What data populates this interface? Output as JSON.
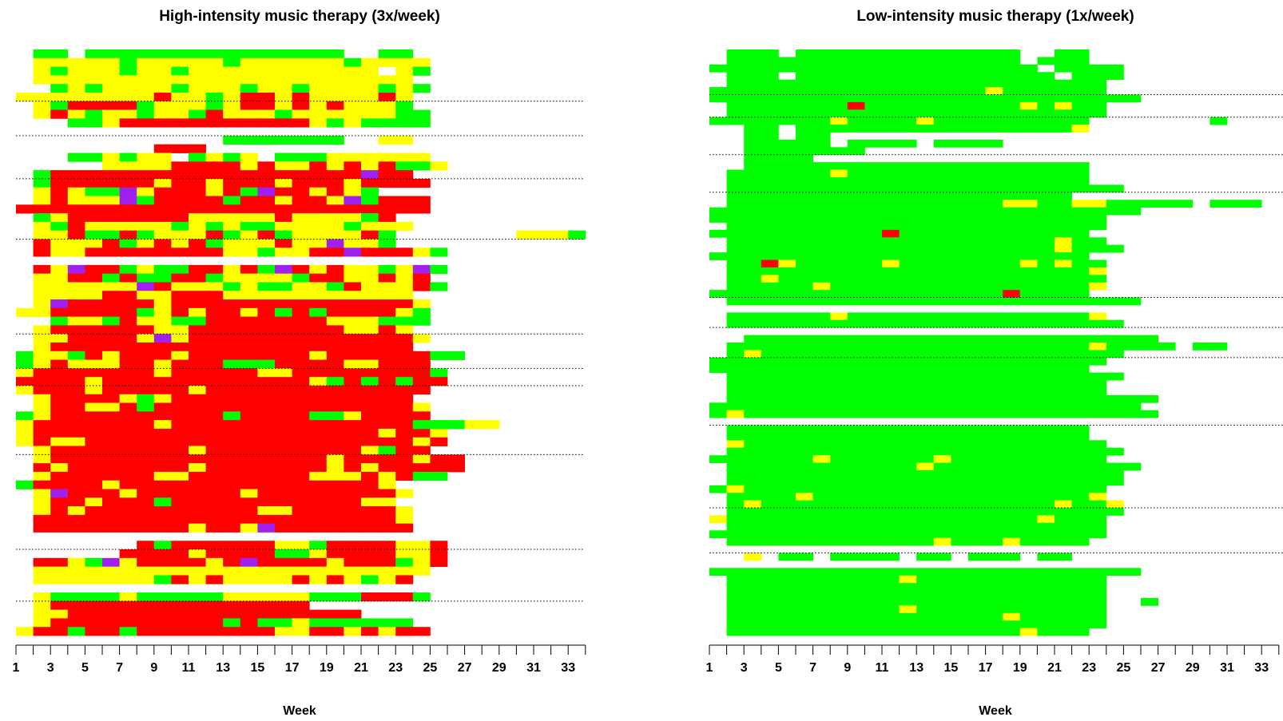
{
  "chart_data": [
    {
      "type": "heatmap",
      "title": "High-intensity music therapy (3x/week)",
      "xlabel": "Week",
      "ylabel": "",
      "xlim": [
        1,
        34
      ],
      "xticks": [
        1,
        3,
        5,
        7,
        9,
        11,
        13,
        15,
        17,
        19,
        21,
        23,
        25,
        27,
        29,
        31,
        33
      ],
      "color_map": {
        "G": "#00ff00",
        "Y": "#ffff00",
        "R": "#ff0000",
        "P": "#a020f0"
      },
      "rows": [
        "-GG.GGGGGGGGGGGGGGG..GG",
        "-YYYYYGYYYYYGYYYYYYGYYYY",
        "-YGYYYGYYGYYYYYYYYYYY.YG",
        "-YYYYYYYYYYYYYYYYYYYYYY",
        "-.GYGYYYYGYYYGYYGYYYYGYG",
        "YYYYYYYYRYYGYRRYRYYYYRY",
        "-YGRRRRGYYYGYRRYRYRYYYG",
        "-YRYGYYGYYGRYYYGYYYYYYGG",
        "-.-GGYRRRRRRRRRRRYGYGGGG",
        "",
        "-.-.........GGGGGGG..YY",
        "-.-.....RRR",
        "-.-GGYGYY.GYGY.GGGYYYYYY",
        "-.-.-YYYYRRRRYRYYRYRYRGGY",
        "-GRRRRRRRRRRRRRRRRRRPRR",
        "-GRRRRRRYRRYRRRYRRRYRRRR",
        "-YRYGGPYRRRYRGPRRYRYG",
        "-YRYYYPGRRRRGRRYRRYPGRRR",
        "RRRRRRRRRRRRRRRRRRRRRRRR",
        "-GYRRRRRRRYYYYYRYYYYGR",
        "-YGRYYYYYGYGYGGYYYYGYYY",
        "-YYRGGRGYYYRGYRGYYYYRG",
        "-RYYYRGYRYRGYYYRYYPYYG",
        "-RYYRRRRRRRRYYGYYRRPRRRYG",
        "",
        "-RYPRRGYGGRRYRGPRYRYYGYPG",
        "-YYRRGRGGRRGYYYYGRRYYRYR",
        "-YYYYYYPRYYYGYGGYYGRYYYRG",
        "-YYYYRRYYRRRYYYYYYYYYYY",
        "-YPRRRRRYRRRRRRRRRRRRRRY",
        "YYRRRRRGYRYRRYRGRGRRRRYG",
        "-.GYYGRYYGGRRRRRRRYYYGGG",
        "-YRRRRRRYYRRRRRRRRRYYRY",
        "-YYRRRRYPYRRRRRRRRRRRRRY",
        "-YRRRRRRRRRRRRRRRRRRRRR",
        "GYYGRYRRRYRRRRRRRYRRRRRRGG",
        "GYRYYYRRYRRRGGGRRRRYYRRR",
        "YRRRRRRRYRRRRRYYRRRRRRRRG",
        "RRRRYRRRRRRRRRRRRYGRGRGRR",
        "YRRRYRRRRRYRRRRRRRRRRRRR",
        "-YRRRRYGYRRRRRRRRRRRRRR",
        "-YRRYYRGRRRRRRRRRRRRRRRY",
        "GYRRRRRRRRRRGRRRRGGYRRRR",
        "YRRRRRRRYRRRRRRRRRRRRRRRY",
        "YRRRRRRRRRRRRRRRRRRRRYRRY",
        "YRYYRRRRRRRRRRRRRRRRRRRYR",
        "-YRRRRRRRRYRRRRRRRRRYGRR",
        "-YRRRRRRRRRRRRRRRRYRRRRYRR",
        "-RYRRRRRRRYRRRRRRRYRYRRRRR",
        "-YRRRRRRYYRRRRRRRYYYRYRGG",
        "GRRRRYRRRRRRRRRRRRRRRY",
        "-YPRRRYRRRRRRYRRRRRRRRY",
        "-YRRYRRRGRRRRRRRRRRRYY",
        "-YRYRRRRRRRRRRYYRRRRRRY",
        "-RRRRRRRRRRRRRRRRRRRRRY",
        "-RRRRRRRRRYRRYPRRRRRRRR",
        "",
        "-.-.-.-RGRRRRRRYYGRRRRYYR",
        "-.-.-.RRRRYRRRRGGYRRRRYYR",
        "-RRYGPYRRRRYRPRRRRYRRRGYR",
        "-YYYYYYYYYYYYYYYYYYYYYYY",
        "-YYYYYYYGRYRYYYYRYRYGYR",
        "",
        "-YGGGGYGGGGGYYYYYGGGRRRG",
        "-YRRRRRRRRRRRRRRR",
        "-YYRRRRRRRRRRRRRRRRR",
        "-YRRRRRRRRRRGRGGYGGGGGG",
        "YRRGRRGRRRRRRRRYYRRYRYRR"
      ],
      "extras": [
        {
          "row": 43,
          "start": 24,
          "cells": "GGGYY"
        },
        {
          "row": 21,
          "start": 30,
          "cells": "YYYG"
        }
      ],
      "separators_after_rows": [
        6,
        10,
        15,
        22,
        33,
        37,
        39,
        47,
        58,
        64
      ]
    },
    {
      "type": "heatmap",
      "title": "Low-intensity music therapy (1x/week)",
      "xlabel": "Week",
      "ylabel": "",
      "xlim": [
        1,
        34
      ],
      "xticks": [
        1,
        3,
        5,
        7,
        9,
        11,
        13,
        15,
        17,
        19,
        21,
        23,
        25,
        27,
        29,
        31,
        33
      ],
      "color_map": {
        "G": "#00ff00",
        "Y": "#ffff00",
        "R": "#ff0000",
        "P": "#a020f0"
      },
      "rows": [
        "-GGG.GGGGGGGGGGGGG..GG",
        "-GGGGGGGGGGGGGGGGG.GGG",
        "GGGGGGGGGGGGGGGGGGG.GGGG",
        "-GGG.GGGGGGGGGGGGGGG.GGG",
        "-GGGGGGGGGGGGGGGGGGGGGG",
        "GGGGGGGGGGGGGGGGYGGGGGG",
        "GGGGGGGGGGGGGGGGGGGGGGGGG",
        "-GGGGGGGRGGGGGGGGGYGYGG",
        "-GGGGGGGGGGGGGGGGGGGGGG",
        "GGGGGGGYGGGGYGGGGGGGGG",
        "-.GG.GGGGGGGGGGGGGGGGY",
        "-.GG.GG",
        "-.GGGGG.GGGG.GGGG",
        "-.GGGGGGG",
        "-.GGGG",
        "-.GGGGGGGGGGGGGGGGGGGG",
        "-GGGGGGYGGGGGGGGGGGGGG",
        "-GGGGGGGGGGGGGGGGGGGGG",
        "-GGGGGGGGGGGGGGGGGGGGGGG",
        "-GGGGGGGGGGGGGGGGGGGG",
        "-GGGGGGGGGGGGGGGGYYGGYYGGGG",
        "GGGGGGGGGGGGGGGGGGGGGGGGG",
        "GGGGGGGGGGGGGGGGGGGGGGG",
        "-GGGGGGGGGGGGGGGGGGGGGG",
        "GGGGGGGGGGRGGGGGGGGGGG",
        "-GGGGGGGGGGGGGGGGGGGYGG",
        "-GGGGGGGGGGGGGGGGGGGYGGG",
        "GGGGGGGGGGGGGGGGGGGGGG",
        "-GGRYGGGGGYGGGGGGGYGYGG",
        "-GGGGGGGGGGGGGGGGGGGGGY",
        "-GGYGGGGGGGGGGGGGGGGGGG",
        "-GGGGGYGGGGGGGGGGGGGGGY",
        "GGGGGGGGGGGGGGGGGRGGGG",
        "-GGGGGGGGGGGGGGGGGGGGGGGG",
        "",
        "-GGGGGGYGGGGGGGGGGGGGGY",
        "-GGGGGGGGGGGGGGGGGGGGGGG",
        "",
        "-.GGGGGGGGGGGGGGGGGGGGGGGG",
        "-GGGGGGGGGGGGGGGGGGGGGYGGGG",
        "-GYGGGGGGGGGGGGGGGGGGGGG",
        "GGGGGGGGGGGGGGGGGGGGGGG",
        "GGGGGGGGGGGGGGGGGGGGGG",
        "-GGGGGGGGGGGGGGGGGGGGGGG",
        "-GGGGGGGGGGGGGGGGGGGGGG",
        "-GGGGGGGGGGGGGGGGGGGGGG",
        "-GGGGGGGGGGGGGGGGGGGGGGGGG",
        "GGGGGGGGGGGGGGGGGGGGGGGGG",
        "GYGGGGGGGGGGGGGGGGGGGGGGGG",
        "",
        "-GGGGGGGGGGGGGGGGGGGGG",
        "-GGGGGGGGGGGGGGGGGGGGG",
        "-YGGGGGGGGGGGGGGGGGGGGG",
        "-GGGGGGGGGGGGGGGGGGGGGGG",
        "GGGGGGYGGGGGGYGGGGGGGGG",
        "-GGGGGGGGGGGYGGGGGGGGGGGG",
        "-GGGGGGGGGGGGGGGGGGGGGGG",
        "-GGGGGGGGGGGGGGGGGGGGGGG",
        "GYGGGGGGGGGGGGGGGGGGGGG",
        "-GGGGYGGGGGGGGGGGGGGGGY",
        "-GYGGGGGGGGGGGGGGGGGYGGY",
        "-GGGGGGGGGGGGGGGGGGGGGGG",
        "YGGGGGGGGGGGGGGGGGGYGGG",
        "-GGGGGGGGGGGGGGGGGGGGGG",
        "GGGGGGGGGGGGGGGGGGGGGGG",
        "-GGGGGGGGGGGGYGGGYGGGG",
        "",
        "-.Y.GG.GGGG.GG.GGG.GG",
        "",
        "GGGGGGGGGGGGGGGGGGGGGGGGG",
        "-GGGGGGGGGGYGGGGGGGGGGG",
        "-GGGGGGGGGGGGGGGGGGGGGG",
        "-GGGGGGGGGGGGGGGGGGGGGG",
        "-GGGGGGGGGGGGGGGGGGGGGG",
        "-GGGGGGGGGGYGGGGGGGGGGG",
        "-GGGGGGGGGGGGGGGGYGGGGG",
        "-GGGGGGGGGGGGGGGGGGGGGG",
        "-GGGGGGGGGGGGGGGGGYGGG"
      ],
      "extras": [
        {
          "row": 9,
          "start": 30,
          "cells": "G"
        },
        {
          "row": 20,
          "start": 28,
          "cells": "G.GGG"
        },
        {
          "row": 39,
          "start": 29,
          "cells": "GG"
        },
        {
          "row": 73,
          "start": 26,
          "cells": "G"
        }
      ],
      "separators_after_rows": [
        6,
        9,
        14,
        19,
        33,
        37,
        41,
        50,
        61,
        67
      ]
    }
  ]
}
